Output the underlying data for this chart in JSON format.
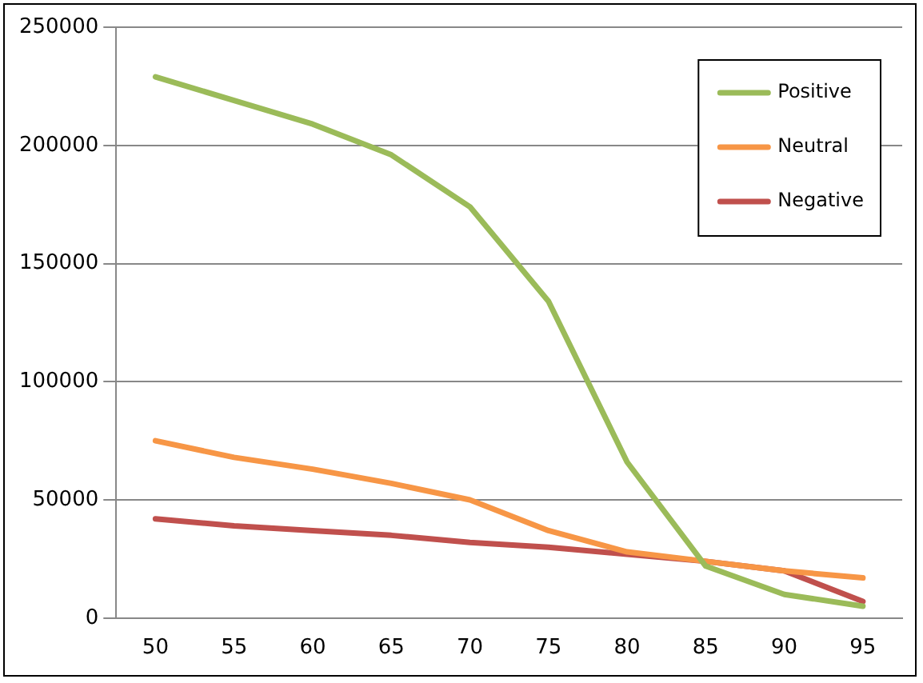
{
  "chart_data": {
    "type": "line",
    "categories": [
      "50",
      "55",
      "60",
      "65",
      "70",
      "75",
      "80",
      "85",
      "90",
      "95"
    ],
    "series": [
      {
        "name": "Positive",
        "color": "#9bbb59",
        "values": [
          229000,
          219000,
          209000,
          196000,
          174000,
          134000,
          66000,
          22000,
          10000,
          5000
        ]
      },
      {
        "name": "Neutral",
        "color": "#f79646",
        "values": [
          75000,
          68000,
          63000,
          57000,
          50000,
          37000,
          28000,
          24000,
          20000,
          17000
        ]
      },
      {
        "name": "Negative",
        "color": "#c0504d",
        "values": [
          42000,
          39000,
          37000,
          35000,
          32000,
          30000,
          27000,
          24000,
          20000,
          7000
        ]
      }
    ],
    "ylim": [
      0,
      250000
    ],
    "yticks": [
      0,
      50000,
      100000,
      150000,
      200000,
      250000
    ],
    "grid": "y",
    "legend": "top right",
    "marker": "none",
    "line_style": "solid"
  }
}
